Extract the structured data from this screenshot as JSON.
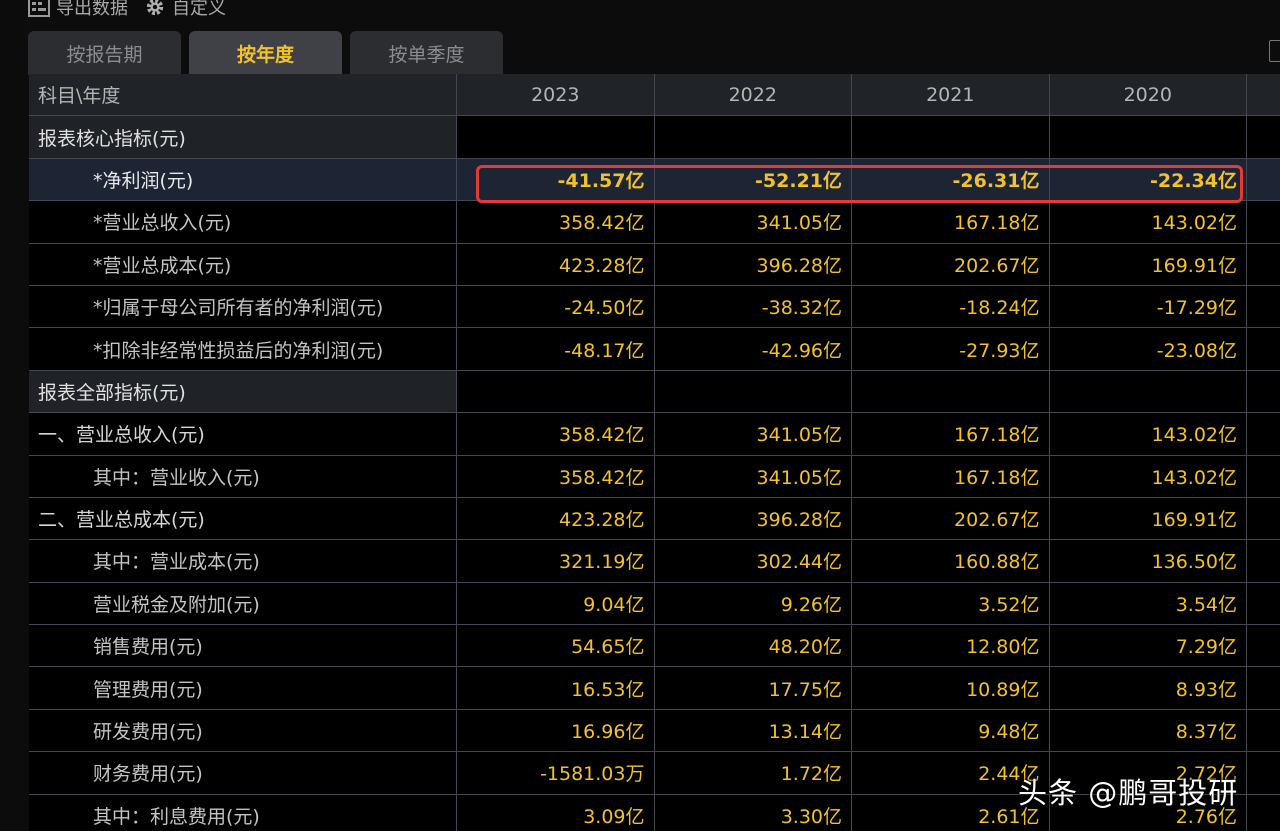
{
  "toolbar": {
    "export_label": "导出数据",
    "customize_label": "自定义",
    "export_icon": "export-icon",
    "customize_icon": "gear-icon"
  },
  "tabs": [
    {
      "label": "按报告期",
      "active": false
    },
    {
      "label": "按年度",
      "active": true
    },
    {
      "label": "按单季度",
      "active": false
    }
  ],
  "table": {
    "header": {
      "label": "科目\\年度",
      "years": [
        "2023",
        "2022",
        "2021",
        "2020"
      ]
    },
    "rows": [
      {
        "label": "报表核心指标(元)",
        "type": "section",
        "values": [
          "",
          "",
          "",
          ""
        ]
      },
      {
        "label": "*净利润(元)",
        "type": "highlight",
        "values": [
          "-41.57亿",
          "-52.21亿",
          "-26.31亿",
          "-22.34亿"
        ]
      },
      {
        "label": "*营业总收入(元)",
        "type": "data",
        "values": [
          "358.42亿",
          "341.05亿",
          "167.18亿",
          "143.02亿"
        ]
      },
      {
        "label": "*营业总成本(元)",
        "type": "data",
        "values": [
          "423.28亿",
          "396.28亿",
          "202.67亿",
          "169.91亿"
        ]
      },
      {
        "label": "*归属于母公司所有者的净利润(元)",
        "type": "data",
        "values": [
          "-24.50亿",
          "-38.32亿",
          "-18.24亿",
          "-17.29亿"
        ]
      },
      {
        "label": "*扣除非经常性损益后的净利润(元)",
        "type": "data",
        "values": [
          "-48.17亿",
          "-42.96亿",
          "-27.93亿",
          "-23.08亿"
        ]
      },
      {
        "label": "报表全部指标(元)",
        "type": "section",
        "values": [
          "",
          "",
          "",
          ""
        ]
      },
      {
        "label": "一、营业总收入(元)",
        "type": "top",
        "values": [
          "358.42亿",
          "341.05亿",
          "167.18亿",
          "143.02亿"
        ]
      },
      {
        "label": "其中：营业收入(元)",
        "type": "data",
        "values": [
          "358.42亿",
          "341.05亿",
          "167.18亿",
          "143.02亿"
        ]
      },
      {
        "label": "二、营业总成本(元)",
        "type": "top",
        "values": [
          "423.28亿",
          "396.28亿",
          "202.67亿",
          "169.91亿"
        ]
      },
      {
        "label": "其中：营业成本(元)",
        "type": "data",
        "values": [
          "321.19亿",
          "302.44亿",
          "160.88亿",
          "136.50亿"
        ]
      },
      {
        "label": "营业税金及附加(元)",
        "type": "data",
        "values": [
          "9.04亿",
          "9.26亿",
          "3.52亿",
          "3.54亿"
        ]
      },
      {
        "label": "销售费用(元)",
        "type": "data",
        "values": [
          "54.65亿",
          "48.20亿",
          "12.80亿",
          "7.29亿"
        ]
      },
      {
        "label": "管理费用(元)",
        "type": "data",
        "values": [
          "16.53亿",
          "17.75亿",
          "10.89亿",
          "8.93亿"
        ]
      },
      {
        "label": "研发费用(元)",
        "type": "data",
        "values": [
          "16.96亿",
          "13.14亿",
          "9.48亿",
          "8.37亿"
        ]
      },
      {
        "label": "财务费用(元)",
        "type": "data",
        "values": [
          "-1581.03万",
          "1.72亿",
          "2.44亿",
          "2.72亿"
        ]
      },
      {
        "label": "其中：利息费用(元)",
        "type": "data",
        "values": [
          "3.09亿",
          "3.30亿",
          "2.61亿",
          "2.76亿"
        ]
      }
    ]
  },
  "watermark": "头条 @鹏哥投研",
  "colors": {
    "accent": "#f2c12e",
    "highlight_border": "#e23c34",
    "background": "#000000"
  }
}
